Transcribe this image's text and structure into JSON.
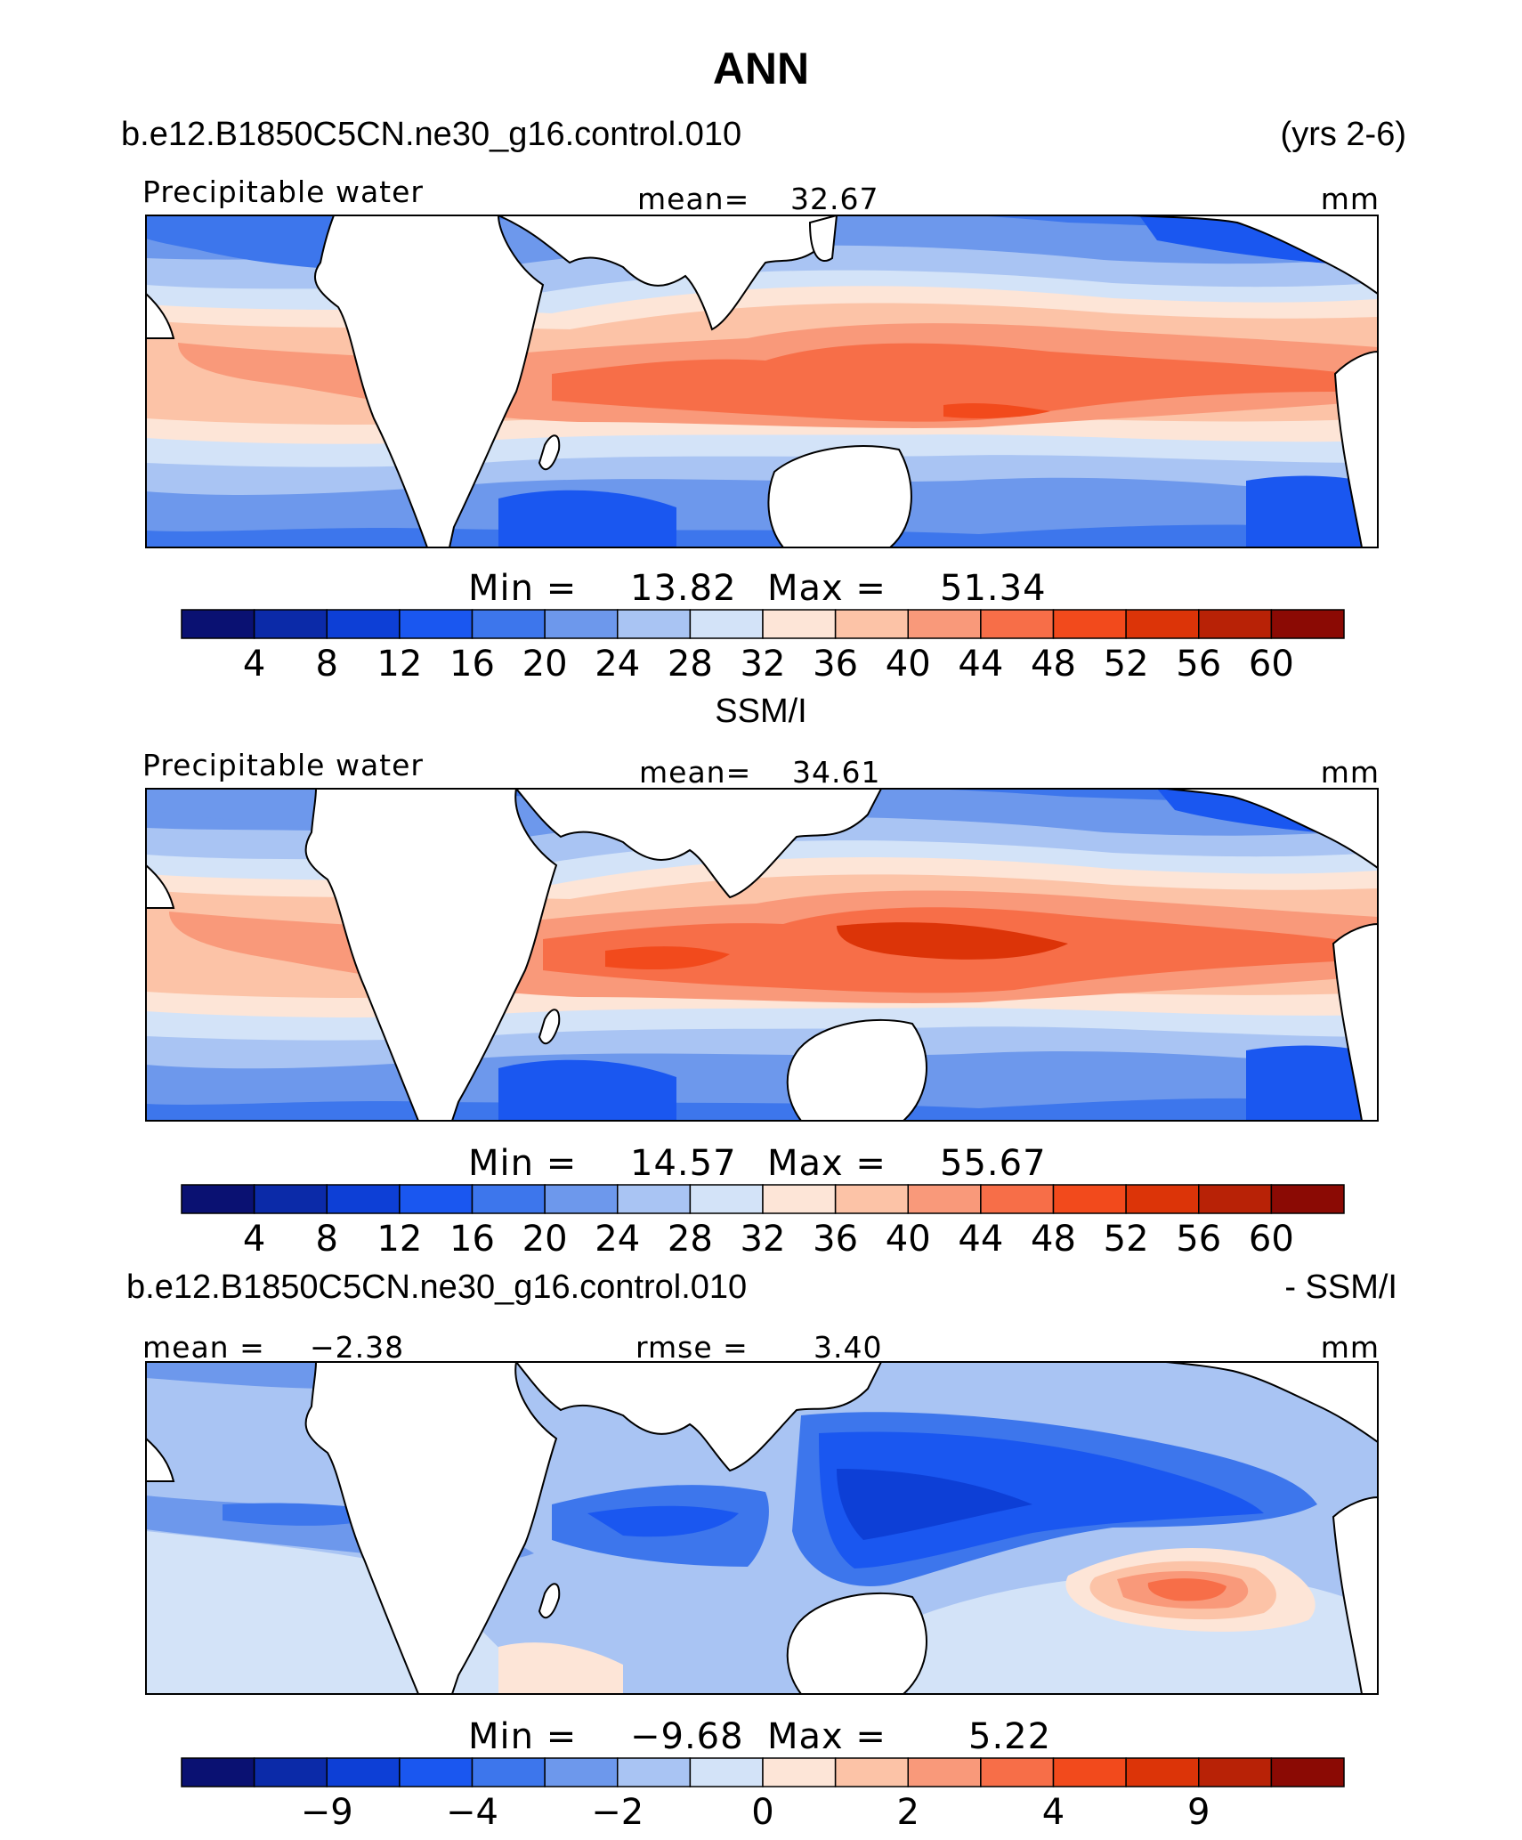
{
  "figure": {
    "title": "ANN",
    "case_name": "b.e12.B1850C5CN.ne30_g16.control.010",
    "years": "(yrs 2-6)",
    "obs_label": "SSM/I",
    "diff_case_name": "b.e12.B1850C5CN.ne30_g16.control.010",
    "diff_obs_label": "- SSM/I"
  },
  "panels": [
    {
      "variable": "Precipitable water",
      "mean_label": "mean=",
      "mean_value": "32.67",
      "units": "mm",
      "min_label": "Min  =",
      "min_value": "13.82",
      "max_label": "Max  =",
      "max_value": "51.34"
    },
    {
      "variable": "Precipitable water",
      "mean_label": "mean=",
      "mean_value": "34.61",
      "units": "mm",
      "min_label": "Min  =",
      "min_value": "14.57",
      "max_label": "Max  =",
      "max_value": "55.67"
    },
    {
      "mean_label": "mean =",
      "mean_value": "−2.38",
      "rmse_label": "rmse =",
      "rmse_value": "3.40",
      "units": "mm",
      "min_label": "Min  =",
      "min_value": "−9.68",
      "max_label": "Max  =",
      "max_value": "5.22"
    }
  ],
  "colorbars": [
    {
      "colors": [
        "#0a1172",
        "#0b2aa8",
        "#0d3fd6",
        "#1a57f0",
        "#3d76ec",
        "#6d98ec",
        "#a9c4f3",
        "#d3e3f8",
        "#fde5d7",
        "#fcc3a7",
        "#f9997a",
        "#f76e48",
        "#f24a1c",
        "#dc3408",
        "#b82206",
        "#8b0a04"
      ],
      "labels": [
        "4",
        "8",
        "12",
        "16",
        "20",
        "24",
        "28",
        "32",
        "36",
        "40",
        "44",
        "48",
        "52",
        "56",
        "60"
      ]
    },
    {
      "colors": [
        "#0a1172",
        "#0b2aa8",
        "#0d3fd6",
        "#1a57f0",
        "#3d76ec",
        "#6d98ec",
        "#a9c4f3",
        "#d3e3f8",
        "#fde5d7",
        "#fcc3a7",
        "#f9997a",
        "#f76e48",
        "#f24a1c",
        "#dc3408",
        "#b82206",
        "#8b0a04"
      ],
      "labels": [
        "4",
        "8",
        "12",
        "16",
        "20",
        "24",
        "28",
        "32",
        "36",
        "40",
        "44",
        "48",
        "52",
        "56",
        "60"
      ]
    },
    {
      "colors": [
        "#0a1172",
        "#0b2aa8",
        "#0d3fd6",
        "#1a57f0",
        "#3d76ec",
        "#6d98ec",
        "#a9c4f3",
        "#d3e3f8",
        "#fde5d7",
        "#fcc3a7",
        "#f9997a",
        "#f76e48",
        "#f24a1c",
        "#dc3408",
        "#b82206",
        "#8b0a04"
      ],
      "labels": [
        "−9",
        "−4",
        "−2",
        "0",
        "2",
        "4",
        "9"
      ],
      "label_boundaries": [
        2,
        4,
        6,
        8,
        10,
        12,
        14
      ]
    }
  ]
}
